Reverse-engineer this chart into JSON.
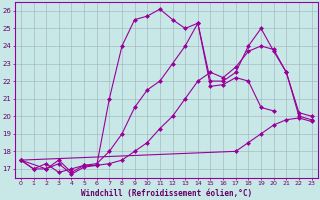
{
  "xlabel": "Windchill (Refroidissement éolien,°C)",
  "bg_color": "#c8e8e8",
  "line_color": "#990099",
  "xlim": [
    -0.5,
    23.5
  ],
  "ylim": [
    16.5,
    26.5
  ],
  "yticks": [
    17,
    18,
    19,
    20,
    21,
    22,
    23,
    24,
    25,
    26
  ],
  "xticks": [
    0,
    1,
    2,
    3,
    4,
    5,
    6,
    7,
    8,
    9,
    10,
    11,
    12,
    13,
    14,
    15,
    16,
    17,
    18,
    19,
    20,
    21,
    22,
    23
  ],
  "line1_x": [
    0,
    1,
    2,
    3,
    4,
    5,
    6,
    7,
    8,
    9,
    10,
    11,
    12,
    13,
    14,
    15,
    16,
    17,
    18,
    19,
    20
  ],
  "line1_y": [
    17.5,
    17.0,
    17.3,
    16.8,
    17.0,
    17.2,
    17.2,
    21.0,
    24.0,
    25.5,
    25.7,
    26.1,
    25.5,
    25.0,
    25.3,
    21.7,
    21.8,
    22.2,
    22.0,
    20.5,
    20.3
  ],
  "line2_x": [
    0,
    1,
    2,
    3,
    4,
    5,
    6,
    7,
    8,
    9,
    10,
    11,
    12,
    13,
    14,
    15,
    16,
    17,
    18,
    19,
    20,
    21,
    22,
    23
  ],
  "line2_y": [
    17.5,
    17.0,
    17.0,
    17.3,
    16.7,
    17.1,
    17.2,
    17.3,
    17.5,
    18.0,
    18.5,
    19.3,
    20.0,
    21.0,
    22.0,
    22.5,
    22.2,
    22.8,
    23.7,
    24.0,
    23.8,
    22.5,
    20.0,
    19.8
  ],
  "line3_x": [
    0,
    2,
    3,
    4,
    5,
    6,
    7,
    8,
    9,
    10,
    11,
    12,
    13,
    14,
    15,
    16,
    17,
    18,
    19,
    20,
    21,
    22,
    23
  ],
  "line3_y": [
    17.5,
    17.0,
    17.5,
    16.8,
    17.2,
    17.3,
    18.0,
    19.0,
    20.5,
    21.5,
    22.0,
    23.0,
    24.0,
    25.3,
    22.0,
    22.0,
    22.5,
    24.0,
    25.0,
    23.7,
    22.5,
    20.2,
    20.0
  ],
  "line4_x": [
    0,
    17,
    18,
    19,
    20,
    21,
    22,
    23
  ],
  "line4_y": [
    17.5,
    18.0,
    18.5,
    19.0,
    19.5,
    19.8,
    19.9,
    19.7
  ]
}
